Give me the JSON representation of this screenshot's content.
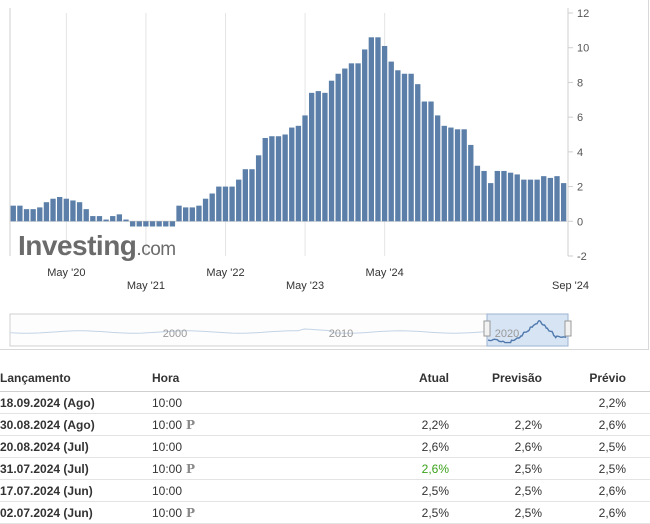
{
  "brand": {
    "name": "Investing",
    "suffix": ".com"
  },
  "chart_data": {
    "type": "bar",
    "color": "#5b7fa8",
    "x_start": "2019-09",
    "x_end": "2024-08",
    "x_tick_labels": [
      "May '20",
      "May '21",
      "May '22",
      "May '23",
      "May '24",
      "Sep '24"
    ],
    "y_tick_labels": [
      "12",
      "10",
      "8",
      "6",
      "4",
      "2",
      "0",
      "-2"
    ],
    "ylim": [
      -2,
      12
    ],
    "values": [
      0.9,
      0.9,
      0.7,
      0.7,
      0.8,
      1.1,
      1.3,
      1.4,
      1.3,
      1.2,
      1.1,
      0.7,
      0.3,
      0.3,
      0.1,
      0.3,
      0.4,
      0.1,
      -0.3,
      -0.3,
      -0.3,
      -0.3,
      -0.3,
      -0.3,
      -0.3,
      0.9,
      0.8,
      0.8,
      0.9,
      1.3,
      1.6,
      2.0,
      2.0,
      2.0,
      2.4,
      3.0,
      3.0,
      3.8,
      4.8,
      4.9,
      4.9,
      5.0,
      5.4,
      5.5,
      6.1,
      7.4,
      7.5,
      7.4,
      8.1,
      8.5,
      8.8,
      9.1,
      9.1,
      9.9,
      10.6,
      10.6,
      10.1,
      9.2,
      8.7,
      8.5,
      8.5,
      7.9,
      6.9,
      6.9,
      6.1,
      5.5,
      5.4,
      5.3,
      5.3,
      4.4,
      3.2,
      2.9,
      2.2,
      2.9,
      2.9,
      2.8,
      2.7,
      2.4,
      2.4,
      2.4,
      2.6,
      2.5,
      2.6,
      2.2
    ],
    "navigator": {
      "labels": [
        "2000",
        "2010",
        "2020"
      ],
      "range": [
        "2019-09",
        "2024-08"
      ]
    }
  },
  "table": {
    "headers": {
      "release": "Lançamento",
      "time": "Hora",
      "actual": "Atual",
      "forecast": "Previsão",
      "previous": "Prévio"
    },
    "rows": [
      {
        "date": "18.09.2024 (Ago)",
        "time": "10:00",
        "prelim": "",
        "actual": "",
        "actual_color": "",
        "forecast": "",
        "previous": "2,2%"
      },
      {
        "date": "30.08.2024 (Ago)",
        "time": "10:00",
        "prelim": "P",
        "actual": "2,2%",
        "actual_color": "",
        "forecast": "2,2%",
        "previous": "2,6%"
      },
      {
        "date": "20.08.2024 (Jul)",
        "time": "10:00",
        "prelim": "",
        "actual": "2,6%",
        "actual_color": "",
        "forecast": "2,6%",
        "previous": "2,5%"
      },
      {
        "date": "31.07.2024 (Jul)",
        "time": "10:00",
        "prelim": "P",
        "actual": "2,6%",
        "actual_color": "green",
        "forecast": "2,5%",
        "previous": "2,5%"
      },
      {
        "date": "17.07.2024 (Jun)",
        "time": "10:00",
        "prelim": "",
        "actual": "2,5%",
        "actual_color": "",
        "forecast": "2,5%",
        "previous": "2,6%"
      },
      {
        "date": "02.07.2024 (Jun)",
        "time": "10:00",
        "prelim": "P",
        "actual": "2,5%",
        "actual_color": "",
        "forecast": "2,5%",
        "previous": "2,6%"
      }
    ]
  }
}
